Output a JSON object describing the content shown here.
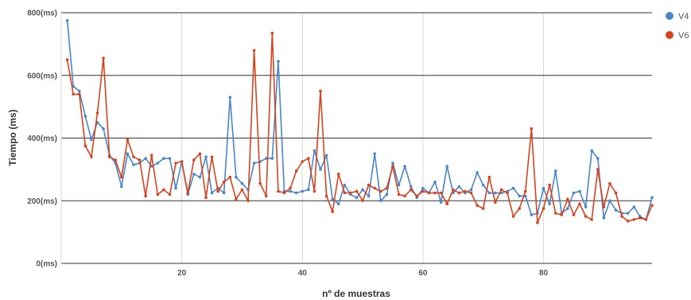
{
  "chart_data": {
    "type": "line",
    "xlabel": "nº de muestras",
    "ylabel": "Tiempo (ms)",
    "xlim": [
      0,
      98
    ],
    "ylim": [
      0,
      800
    ],
    "x_ticks": [
      20,
      40,
      60,
      80
    ],
    "y_ticks": [
      {
        "value": 0,
        "label": "0(ms)"
      },
      {
        "value": 200,
        "label": "200(ms)"
      },
      {
        "value": 400,
        "label": "400(ms)"
      },
      {
        "value": 600,
        "label": "600(ms)"
      },
      {
        "value": 800,
        "label": "800(ms)"
      }
    ],
    "grid": "horizontal major lines dark, vertical at x ticks light",
    "legend_position": "right",
    "series": [
      {
        "name": "V4",
        "color": "#4a86c8",
        "values": [
          775,
          565,
          550,
          470,
          395,
          450,
          430,
          345,
          320,
          245,
          350,
          315,
          320,
          335,
          310,
          320,
          335,
          335,
          240,
          325,
          220,
          285,
          275,
          340,
          225,
          240,
          225,
          530,
          275,
          255,
          235,
          320,
          325,
          335,
          335,
          645,
          230,
          230,
          225,
          230,
          235,
          360,
          300,
          345,
          205,
          190,
          250,
          220,
          210,
          235,
          215,
          350,
          200,
          220,
          320,
          250,
          310,
          245,
          210,
          240,
          225,
          260,
          195,
          310,
          225,
          245,
          225,
          235,
          290,
          250,
          225,
          225,
          225,
          230,
          240,
          215,
          215,
          155,
          160,
          240,
          190,
          295,
          160,
          175,
          225,
          230,
          180,
          360,
          335,
          145,
          200,
          170,
          160,
          160,
          180,
          150,
          140,
          210
        ]
      },
      {
        "name": "V6",
        "color": "#d8431f",
        "values": [
          650,
          540,
          540,
          375,
          340,
          480,
          655,
          340,
          330,
          275,
          395,
          340,
          330,
          215,
          345,
          220,
          235,
          220,
          320,
          325,
          225,
          330,
          350,
          210,
          340,
          230,
          260,
          275,
          205,
          235,
          200,
          680,
          255,
          215,
          735,
          230,
          225,
          240,
          295,
          325,
          335,
          230,
          550,
          215,
          165,
          285,
          225,
          225,
          230,
          200,
          250,
          240,
          230,
          240,
          310,
          220,
          215,
          235,
          215,
          230,
          225,
          225,
          225,
          190,
          235,
          225,
          230,
          225,
          185,
          175,
          275,
          195,
          235,
          225,
          150,
          175,
          230,
          430,
          130,
          175,
          250,
          160,
          155,
          205,
          155,
          190,
          150,
          140,
          300,
          180,
          255,
          225,
          150,
          135,
          140,
          145,
          140,
          185
        ]
      }
    ]
  }
}
